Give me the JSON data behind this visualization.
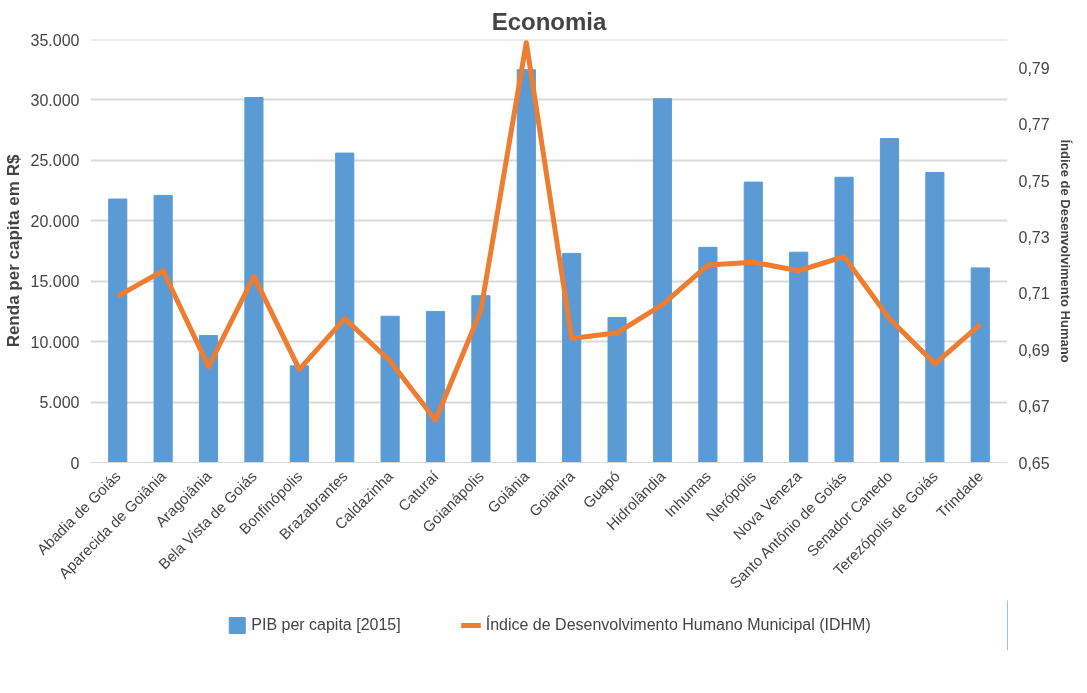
{
  "chart_data": {
    "type": "bar",
    "title": "Economia",
    "ylabel": "Renda per capita em R$",
    "y2label": "Índice de Desenvolvimento Humano",
    "categories": [
      "Abadia de Goiás",
      "Aparecida de Goiânia",
      "Aragoiânia",
      "Bela Vista de Goiás",
      "Bonfinópolis",
      "Brazabrantes",
      "Caldazinha",
      "Caturaí",
      "Goianápolis",
      "Goiânia",
      "Goianira",
      "Guapó",
      "Hidrolândia",
      "Inhumas",
      "Nerópolis",
      "Nova Veneza",
      "Santo Antônio de Goiás",
      "Senador Canedo",
      "Terezópolis de Goiás",
      "Trindade"
    ],
    "series": [
      {
        "name": "PIB per capita [2015]",
        "color": "#5b9bd5",
        "values": [
          21800,
          22100,
          10500,
          30200,
          8000,
          25600,
          12100,
          12500,
          13800,
          32500,
          17300,
          12000,
          30100,
          17800,
          23200,
          17400,
          23600,
          26800,
          24000,
          16100
        ]
      },
      {
        "name": "Índice de Desenvolvimento Humano Municipal (IDHM)",
        "type": "line",
        "axis": "y2",
        "color": "#ed7d31",
        "values": [
          0.709,
          0.718,
          0.684,
          0.716,
          0.683,
          0.701,
          0.686,
          0.665,
          0.704,
          0.799,
          0.694,
          0.696,
          0.706,
          0.72,
          0.721,
          0.718,
          0.723,
          0.701,
          0.685,
          0.699
        ]
      }
    ],
    "ylim": [
      0,
      35000
    ],
    "yticks": [
      0,
      {
        "value": 5000,
        "label": "5.000"
      },
      {
        "value": 10000,
        "label": "10.000"
      },
      {
        "value": 15000,
        "label": "15.000"
      },
      {
        "value": 20000,
        "label": "20.000"
      },
      {
        "value": 25000,
        "label": "25.000"
      },
      {
        "value": 30000,
        "label": "30.000"
      },
      {
        "value": 35000,
        "label": "35.000"
      }
    ],
    "y2lim": [
      0.65,
      0.8
    ],
    "y2ticks": [
      {
        "value": 0.65,
        "label": "0,65"
      },
      {
        "value": 0.67,
        "label": "0,67"
      },
      {
        "value": 0.69,
        "label": "0,69"
      },
      {
        "value": 0.71,
        "label": "0,71"
      },
      {
        "value": 0.73,
        "label": "0,73"
      },
      {
        "value": 0.75,
        "label": "0,75"
      },
      {
        "value": 0.77,
        "label": "0,77"
      },
      {
        "value": 0.79,
        "label": "0,79"
      }
    ],
    "grid": "y",
    "legend": "bottom",
    "line_style": "solid",
    "marker": "none"
  }
}
